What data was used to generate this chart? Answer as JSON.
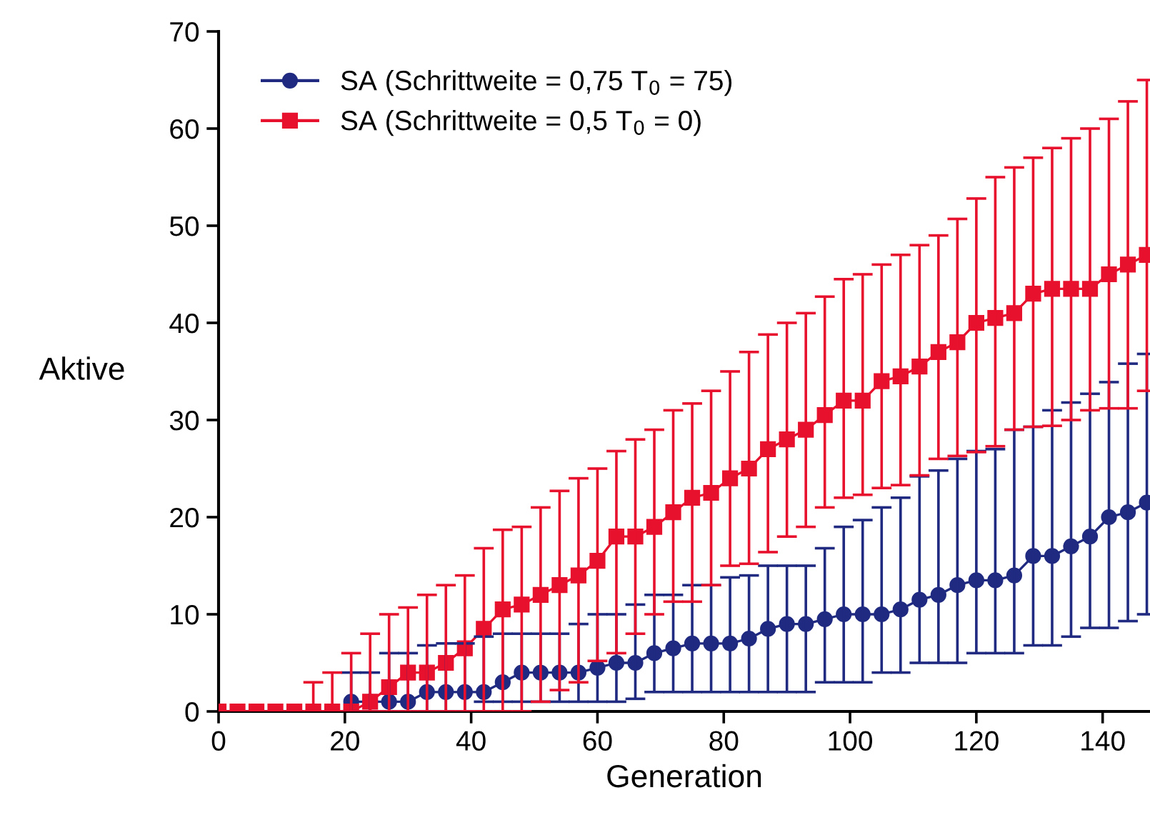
{
  "chart_data": {
    "type": "line",
    "xlabel": "Generation",
    "ylabel": "Aktive",
    "xlim": [
      0,
      147.5
    ],
    "xticks": [
      0,
      20,
      40,
      60,
      80,
      100,
      120,
      140
    ],
    "ylim": [
      0,
      70
    ],
    "yticks": [
      0,
      10,
      20,
      30,
      40,
      50,
      60,
      70
    ],
    "grid": false,
    "legend": "top left",
    "line_style": "solid",
    "x": [
      0,
      3,
      6,
      9,
      12,
      15,
      18,
      21,
      24,
      27,
      30,
      33,
      36,
      39,
      42,
      45,
      48,
      51,
      54,
      57,
      60,
      63,
      66,
      69,
      72,
      75,
      78,
      81,
      84,
      87,
      90,
      93,
      96,
      99,
      102,
      105,
      108,
      111,
      114,
      117,
      120,
      123,
      126,
      129,
      132,
      135,
      138,
      141,
      144,
      147
    ],
    "series": [
      {
        "name": "SA (Schrittweite = 0,75 T$_{0}$ = 75)",
        "color": "#1f2a80",
        "marker": "circle",
        "values": [
          null,
          null,
          null,
          null,
          null,
          null,
          null,
          1,
          1,
          1,
          1,
          2,
          2,
          2,
          2,
          3,
          4,
          4,
          4,
          4,
          4.5,
          5,
          5,
          6,
          6.5,
          7,
          7,
          7,
          7.5,
          8.5,
          9,
          9,
          9.5,
          10,
          10,
          10,
          10.5,
          11.5,
          12,
          13,
          13.5,
          13.5,
          14,
          16,
          16,
          17,
          18,
          20,
          20.5,
          21.5
        ],
        "errors": [
          null,
          null,
          null,
          null,
          null,
          null,
          null,
          [
            0,
            4
          ],
          [
            0,
            4
          ],
          [
            0,
            6
          ],
          [
            0,
            6
          ],
          [
            0,
            6.8
          ],
          [
            0,
            7
          ],
          [
            0,
            7
          ],
          [
            1,
            7.7
          ],
          [
            1,
            8
          ],
          [
            1,
            8
          ],
          [
            1,
            8
          ],
          [
            1,
            8
          ],
          [
            1,
            9
          ],
          [
            1,
            10
          ],
          [
            1,
            10
          ],
          [
            1.3,
            11
          ],
          [
            2,
            12
          ],
          [
            2,
            12
          ],
          [
            2,
            13
          ],
          [
            2,
            13
          ],
          [
            2,
            13.8
          ],
          [
            2,
            14
          ],
          [
            2,
            15
          ],
          [
            2,
            15
          ],
          [
            2,
            15
          ],
          [
            3,
            16.8
          ],
          [
            3,
            19
          ],
          [
            3,
            19.7
          ],
          [
            4,
            21
          ],
          [
            4,
            22
          ],
          [
            5,
            24.2
          ],
          [
            5,
            24.8
          ],
          [
            5,
            26
          ],
          [
            6,
            26.8
          ],
          [
            6,
            27
          ],
          [
            6,
            29
          ],
          [
            6.8,
            29.3
          ],
          [
            6.8,
            31
          ],
          [
            7.7,
            31.8
          ],
          [
            8.6,
            32.7
          ],
          [
            8.6,
            33.9
          ],
          [
            9.3,
            35.8
          ],
          [
            10,
            36.8
          ]
        ]
      },
      {
        "name": "SA (Schrittweite = 0,5 T$_{0}$ = 0)",
        "color": "#e8112d",
        "marker": "square",
        "values": [
          0,
          0,
          0,
          0,
          0,
          0,
          0,
          0,
          1,
          2.5,
          4,
          4,
          5,
          6.5,
          8.5,
          10.5,
          11,
          12,
          13,
          14,
          15.5,
          18,
          18,
          19,
          20.5,
          22,
          22.5,
          24,
          25,
          27,
          28,
          29,
          30.5,
          32,
          32,
          34,
          34.5,
          35.5,
          37,
          38,
          40,
          40.5,
          41,
          43,
          43.5,
          43.5,
          43.5,
          45,
          46,
          47
        ],
        "errors": [
          null,
          null,
          null,
          null,
          null,
          [
            0,
            3
          ],
          [
            0,
            4
          ],
          [
            0,
            6
          ],
          [
            0,
            8
          ],
          [
            0,
            10
          ],
          [
            0,
            10.7
          ],
          [
            0,
            12
          ],
          [
            0,
            13
          ],
          [
            0,
            14
          ],
          [
            0,
            16.8
          ],
          [
            0,
            18.7
          ],
          [
            0,
            19
          ],
          [
            1,
            21
          ],
          [
            2.2,
            22.7
          ],
          [
            3,
            24
          ],
          [
            5.2,
            25
          ],
          [
            6,
            26.8
          ],
          [
            8,
            28
          ],
          [
            10,
            29
          ],
          [
            11.3,
            31
          ],
          [
            11.3,
            31.7
          ],
          [
            13,
            33
          ],
          [
            15,
            35
          ],
          [
            15.2,
            37
          ],
          [
            16.4,
            38.8
          ],
          [
            18,
            40
          ],
          [
            19,
            41
          ],
          [
            21,
            42.7
          ],
          [
            22,
            44.5
          ],
          [
            22.3,
            45
          ],
          [
            23,
            46
          ],
          [
            23.3,
            47
          ],
          [
            24.3,
            48
          ],
          [
            26,
            49
          ],
          [
            26.3,
            50.7
          ],
          [
            26.7,
            52.8
          ],
          [
            27.3,
            55
          ],
          [
            29,
            56
          ],
          [
            29.3,
            57
          ],
          [
            29.4,
            58
          ],
          [
            30,
            59
          ],
          [
            31,
            60
          ],
          [
            31.2,
            61
          ],
          [
            31.2,
            62.8
          ],
          [
            33,
            65
          ]
        ]
      }
    ]
  }
}
